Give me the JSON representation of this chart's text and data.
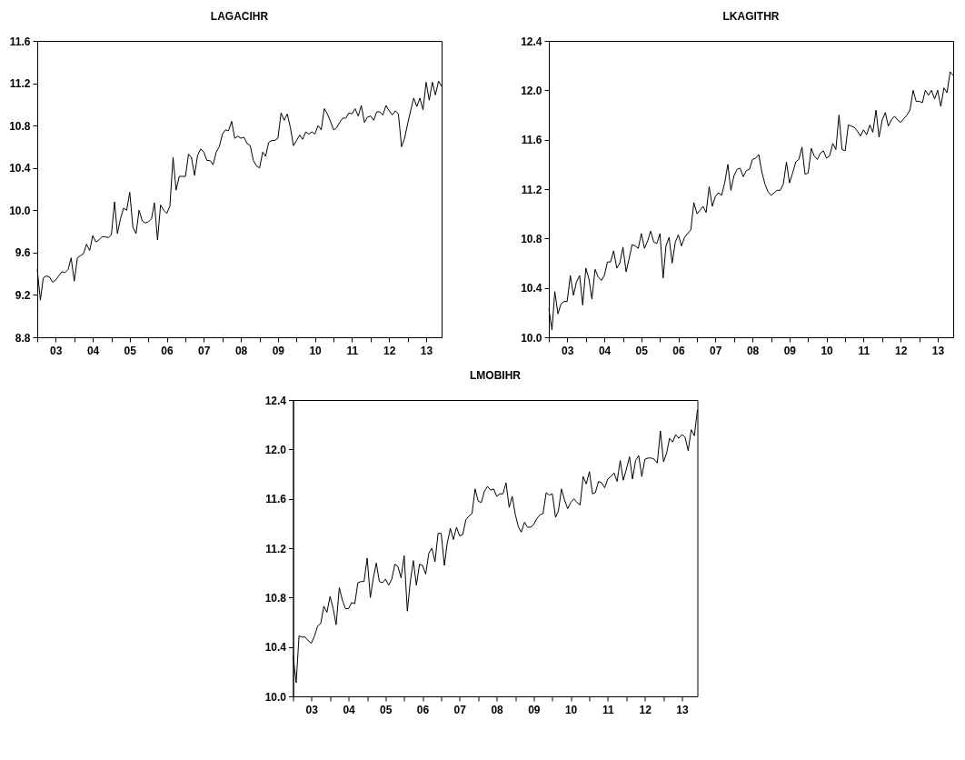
{
  "chart_data": [
    {
      "type": "line",
      "title": "LAGACIHR",
      "color": "#000000",
      "grid": false,
      "legend": false,
      "marker": "none",
      "line_style": "solid",
      "x": [
        "2003-01",
        "2003-02",
        "2003-03",
        "2003-04",
        "2003-05",
        "2003-06",
        "2003-07",
        "2003-08",
        "2003-09",
        "2003-10",
        "2003-11",
        "2003-12",
        "2004-01",
        "2004-02",
        "2004-03",
        "2004-04",
        "2004-05",
        "2004-06",
        "2004-07",
        "2004-08",
        "2004-09",
        "2004-10",
        "2004-11",
        "2004-12",
        "2005-01",
        "2005-02",
        "2005-03",
        "2005-04",
        "2005-05",
        "2005-06",
        "2005-07",
        "2005-08",
        "2005-09",
        "2005-10",
        "2005-11",
        "2005-12",
        "2006-01",
        "2006-02",
        "2006-03",
        "2006-04",
        "2006-05",
        "2006-06",
        "2006-07",
        "2006-08",
        "2006-09",
        "2006-10",
        "2006-11",
        "2006-12",
        "2007-01",
        "2007-02",
        "2007-03",
        "2007-04",
        "2007-05",
        "2007-06",
        "2007-07",
        "2007-08",
        "2007-09",
        "2007-10",
        "2007-11",
        "2007-12",
        "2008-01",
        "2008-02",
        "2008-03",
        "2008-04",
        "2008-05",
        "2008-06",
        "2008-07",
        "2008-08",
        "2008-09",
        "2008-10",
        "2008-11",
        "2008-12",
        "2009-01",
        "2009-02",
        "2009-03",
        "2009-04",
        "2009-05",
        "2009-06",
        "2009-07",
        "2009-08",
        "2009-09",
        "2009-10",
        "2009-11",
        "2009-12",
        "2010-01",
        "2010-02",
        "2010-03",
        "2010-04",
        "2010-05",
        "2010-06",
        "2010-07",
        "2010-08",
        "2010-09",
        "2010-10",
        "2010-11",
        "2010-12",
        "2011-01",
        "2011-02",
        "2011-03",
        "2011-04",
        "2011-05",
        "2011-06",
        "2011-07",
        "2011-08",
        "2011-09",
        "2011-10",
        "2011-11",
        "2011-12",
        "2012-01",
        "2012-02",
        "2012-03",
        "2012-04",
        "2012-05",
        "2012-06",
        "2012-07",
        "2012-08",
        "2012-09",
        "2012-10",
        "2012-11",
        "2012-12",
        "2013-01",
        "2013-02",
        "2013-03",
        "2013-04",
        "2013-05",
        "2013-06",
        "2013-07",
        "2013-08",
        "2013-09",
        "2013-10",
        "2013-11",
        "2013-12"
      ],
      "values": [
        9.44,
        9.15,
        9.36,
        9.38,
        9.37,
        9.32,
        9.34,
        9.38,
        9.42,
        9.41,
        9.44,
        9.55,
        9.33,
        9.55,
        9.57,
        9.59,
        9.68,
        9.62,
        9.76,
        9.7,
        9.72,
        9.75,
        9.75,
        9.74,
        9.77,
        10.08,
        9.78,
        9.92,
        10.02,
        10.0,
        10.17,
        9.84,
        9.78,
        10.0,
        9.9,
        9.88,
        9.89,
        9.92,
        10.07,
        9.72,
        10.05,
        10.0,
        9.97,
        10.04,
        10.5,
        10.19,
        10.32,
        10.32,
        10.32,
        10.53,
        10.5,
        10.33,
        10.52,
        10.58,
        10.55,
        10.47,
        10.47,
        10.43,
        10.55,
        10.6,
        10.72,
        10.76,
        10.75,
        10.84,
        10.68,
        10.7,
        10.68,
        10.69,
        10.63,
        10.61,
        10.47,
        10.42,
        10.4,
        10.55,
        10.51,
        10.64,
        10.66,
        10.66,
        10.68,
        10.92,
        10.85,
        10.91,
        10.78,
        10.61,
        10.66,
        10.71,
        10.67,
        10.74,
        10.72,
        10.74,
        10.72,
        10.8,
        10.76,
        10.96,
        10.91,
        10.84,
        10.76,
        10.78,
        10.83,
        10.87,
        10.87,
        10.92,
        10.91,
        10.96,
        10.89,
        10.99,
        10.83,
        10.88,
        10.89,
        10.85,
        10.93,
        10.93,
        10.9,
        10.99,
        10.94,
        10.9,
        10.94,
        10.91,
        10.6,
        10.68,
        10.82,
        10.95,
        11.06,
        10.98,
        11.06,
        10.95,
        11.21,
        11.04,
        11.21,
        11.09,
        11.22,
        11.17
      ],
      "xlim": [
        "2003-01",
        "2013-12"
      ],
      "xticks": [
        {
          "value": "2003-01",
          "label": null
        },
        {
          "value": "2003-07",
          "label": "03"
        },
        {
          "value": "2004-01",
          "label": null
        },
        {
          "value": "2004-07",
          "label": "04"
        },
        {
          "value": "2005-01",
          "label": null
        },
        {
          "value": "2005-07",
          "label": "05"
        },
        {
          "value": "2006-01",
          "label": null
        },
        {
          "value": "2006-07",
          "label": "06"
        },
        {
          "value": "2007-01",
          "label": null
        },
        {
          "value": "2007-07",
          "label": "07"
        },
        {
          "value": "2008-01",
          "label": null
        },
        {
          "value": "2008-07",
          "label": "08"
        },
        {
          "value": "2009-01",
          "label": null
        },
        {
          "value": "2009-07",
          "label": "09"
        },
        {
          "value": "2010-01",
          "label": null
        },
        {
          "value": "2010-07",
          "label": "10"
        },
        {
          "value": "2011-01",
          "label": null
        },
        {
          "value": "2011-07",
          "label": "11"
        },
        {
          "value": "2012-01",
          "label": null
        },
        {
          "value": "2012-07",
          "label": "12"
        },
        {
          "value": "2013-01",
          "label": null
        },
        {
          "value": "2013-07",
          "label": "13"
        }
      ],
      "ylim": [
        8.8,
        11.6
      ],
      "yticks": [
        {
          "value": 8.8,
          "label": "8.8"
        },
        {
          "value": 9.2,
          "label": "9.2"
        },
        {
          "value": 9.6,
          "label": "9.6"
        },
        {
          "value": 10,
          "label": "10.0"
        },
        {
          "value": 10.4,
          "label": "10.4"
        },
        {
          "value": 10.8,
          "label": "10.8"
        },
        {
          "value": 11.2,
          "label": "11.2"
        },
        {
          "value": 11.6,
          "label": "11.6"
        }
      ]
    },
    {
      "type": "line",
      "title": "LKAGITHR",
      "color": "#000000",
      "grid": false,
      "legend": false,
      "marker": "none",
      "line_style": "solid",
      "x": [
        "2003-01",
        "2003-02",
        "2003-03",
        "2003-04",
        "2003-05",
        "2003-06",
        "2003-07",
        "2003-08",
        "2003-09",
        "2003-10",
        "2003-11",
        "2003-12",
        "2004-01",
        "2004-02",
        "2004-03",
        "2004-04",
        "2004-05",
        "2004-06",
        "2004-07",
        "2004-08",
        "2004-09",
        "2004-10",
        "2004-11",
        "2004-12",
        "2005-01",
        "2005-02",
        "2005-03",
        "2005-04",
        "2005-05",
        "2005-06",
        "2005-07",
        "2005-08",
        "2005-09",
        "2005-10",
        "2005-11",
        "2005-12",
        "2006-01",
        "2006-02",
        "2006-03",
        "2006-04",
        "2006-05",
        "2006-06",
        "2006-07",
        "2006-08",
        "2006-09",
        "2006-10",
        "2006-11",
        "2006-12",
        "2007-01",
        "2007-02",
        "2007-03",
        "2007-04",
        "2007-05",
        "2007-06",
        "2007-07",
        "2007-08",
        "2007-09",
        "2007-10",
        "2007-11",
        "2007-12",
        "2008-01",
        "2008-02",
        "2008-03",
        "2008-04",
        "2008-05",
        "2008-06",
        "2008-07",
        "2008-08",
        "2008-09",
        "2008-10",
        "2008-11",
        "2008-12",
        "2009-01",
        "2009-02",
        "2009-03",
        "2009-04",
        "2009-05",
        "2009-06",
        "2009-07",
        "2009-08",
        "2009-09",
        "2009-10",
        "2009-11",
        "2009-12",
        "2010-01",
        "2010-02",
        "2010-03",
        "2010-04",
        "2010-05",
        "2010-06",
        "2010-07",
        "2010-08",
        "2010-09",
        "2010-10",
        "2010-11",
        "2010-12",
        "2011-01",
        "2011-02",
        "2011-03",
        "2011-04",
        "2011-05",
        "2011-06",
        "2011-07",
        "2011-08",
        "2011-09",
        "2011-10",
        "2011-11",
        "2011-12",
        "2012-01",
        "2012-02",
        "2012-03",
        "2012-04",
        "2012-05",
        "2012-06",
        "2012-07",
        "2012-08",
        "2012-09",
        "2012-10",
        "2012-11",
        "2012-12",
        "2013-01",
        "2013-02",
        "2013-03",
        "2013-04",
        "2013-05",
        "2013-06",
        "2013-07",
        "2013-08",
        "2013-09",
        "2013-10",
        "2013-11",
        "2013-12"
      ],
      "values": [
        10.23,
        10.06,
        10.37,
        10.19,
        10.27,
        10.29,
        10.29,
        10.5,
        10.34,
        10.45,
        10.5,
        10.26,
        10.56,
        10.47,
        10.31,
        10.55,
        10.49,
        10.46,
        10.5,
        10.61,
        10.61,
        10.7,
        10.56,
        10.6,
        10.73,
        10.53,
        10.63,
        10.75,
        10.74,
        10.72,
        10.84,
        10.72,
        10.78,
        10.86,
        10.77,
        10.76,
        10.84,
        10.48,
        10.74,
        10.81,
        10.6,
        10.77,
        10.83,
        10.74,
        10.81,
        10.84,
        10.87,
        11.09,
        11.0,
        11.03,
        11.06,
        11.01,
        11.22,
        11.06,
        11.14,
        11.17,
        11.15,
        11.25,
        11.4,
        11.19,
        11.31,
        11.36,
        11.37,
        11.3,
        11.35,
        11.36,
        11.44,
        11.45,
        11.48,
        11.34,
        11.24,
        11.18,
        11.15,
        11.17,
        11.19,
        11.19,
        11.24,
        11.42,
        11.25,
        11.33,
        11.42,
        11.44,
        11.54,
        11.32,
        11.33,
        11.53,
        11.47,
        11.44,
        11.49,
        11.51,
        11.45,
        11.47,
        11.57,
        11.52,
        11.8,
        11.52,
        11.51,
        11.72,
        11.71,
        11.7,
        11.67,
        11.63,
        11.68,
        11.64,
        11.72,
        11.66,
        11.84,
        11.62,
        11.76,
        11.82,
        11.71,
        11.76,
        11.79,
        11.76,
        11.74,
        11.77,
        11.8,
        11.84,
        12.0,
        11.91,
        11.91,
        11.9,
        12.0,
        11.96,
        12.0,
        11.93,
        12.0,
        11.87,
        12.02,
        11.98,
        12.15,
        12.12
      ],
      "xlim": [
        "2003-01",
        "2013-12"
      ],
      "xticks": [
        {
          "value": "2003-01",
          "label": null
        },
        {
          "value": "2003-07",
          "label": "03"
        },
        {
          "value": "2004-01",
          "label": null
        },
        {
          "value": "2004-07",
          "label": "04"
        },
        {
          "value": "2005-01",
          "label": null
        },
        {
          "value": "2005-07",
          "label": "05"
        },
        {
          "value": "2006-01",
          "label": null
        },
        {
          "value": "2006-07",
          "label": "06"
        },
        {
          "value": "2007-01",
          "label": null
        },
        {
          "value": "2007-07",
          "label": "07"
        },
        {
          "value": "2008-01",
          "label": null
        },
        {
          "value": "2008-07",
          "label": "08"
        },
        {
          "value": "2009-01",
          "label": null
        },
        {
          "value": "2009-07",
          "label": "09"
        },
        {
          "value": "2010-01",
          "label": null
        },
        {
          "value": "2010-07",
          "label": "10"
        },
        {
          "value": "2011-01",
          "label": null
        },
        {
          "value": "2011-07",
          "label": "11"
        },
        {
          "value": "2012-01",
          "label": null
        },
        {
          "value": "2012-07",
          "label": "12"
        },
        {
          "value": "2013-01",
          "label": null
        },
        {
          "value": "2013-07",
          "label": "13"
        }
      ],
      "ylim": [
        10,
        12.4
      ],
      "yticks": [
        {
          "value": 10,
          "label": "10.0"
        },
        {
          "value": 10.4,
          "label": "10.4"
        },
        {
          "value": 10.8,
          "label": "10.8"
        },
        {
          "value": 11.2,
          "label": "11.2"
        },
        {
          "value": 11.6,
          "label": "11.6"
        },
        {
          "value": 12,
          "label": "12.0"
        },
        {
          "value": 12.4,
          "label": "12.4"
        }
      ]
    },
    {
      "type": "line",
      "title": "LMOBIHR",
      "color": "#000000",
      "grid": false,
      "legend": false,
      "marker": "none",
      "line_style": "solid",
      "x": [
        "2003-01",
        "2003-02",
        "2003-03",
        "2003-04",
        "2003-05",
        "2003-06",
        "2003-07",
        "2003-08",
        "2003-09",
        "2003-10",
        "2003-11",
        "2003-12",
        "2004-01",
        "2004-02",
        "2004-03",
        "2004-04",
        "2004-05",
        "2004-06",
        "2004-07",
        "2004-08",
        "2004-09",
        "2004-10",
        "2004-11",
        "2004-12",
        "2005-01",
        "2005-02",
        "2005-03",
        "2005-04",
        "2005-05",
        "2005-06",
        "2005-07",
        "2005-08",
        "2005-09",
        "2005-10",
        "2005-11",
        "2005-12",
        "2006-01",
        "2006-02",
        "2006-03",
        "2006-04",
        "2006-05",
        "2006-06",
        "2006-07",
        "2006-08",
        "2006-09",
        "2006-10",
        "2006-11",
        "2006-12",
        "2007-01",
        "2007-02",
        "2007-03",
        "2007-04",
        "2007-05",
        "2007-06",
        "2007-07",
        "2007-08",
        "2007-09",
        "2007-10",
        "2007-11",
        "2007-12",
        "2008-01",
        "2008-02",
        "2008-03",
        "2008-04",
        "2008-05",
        "2008-06",
        "2008-07",
        "2008-08",
        "2008-09",
        "2008-10",
        "2008-11",
        "2008-12",
        "2009-01",
        "2009-02",
        "2009-03",
        "2009-04",
        "2009-05",
        "2009-06",
        "2009-07",
        "2009-08",
        "2009-09",
        "2009-10",
        "2009-11",
        "2009-12",
        "2010-01",
        "2010-02",
        "2010-03",
        "2010-04",
        "2010-05",
        "2010-06",
        "2010-07",
        "2010-08",
        "2010-09",
        "2010-10",
        "2010-11",
        "2010-12",
        "2011-01",
        "2011-02",
        "2011-03",
        "2011-04",
        "2011-05",
        "2011-06",
        "2011-07",
        "2011-08",
        "2011-09",
        "2011-10",
        "2011-11",
        "2011-12",
        "2012-01",
        "2012-02",
        "2012-03",
        "2012-04",
        "2012-05",
        "2012-06",
        "2012-07",
        "2012-08",
        "2012-09",
        "2012-10",
        "2012-11",
        "2012-12",
        "2013-01",
        "2013-02",
        "2013-03",
        "2013-04",
        "2013-05",
        "2013-06",
        "2013-07",
        "2013-08",
        "2013-09",
        "2013-10",
        "2013-11",
        "2013-12"
      ],
      "values": [
        10.33,
        10.11,
        10.49,
        10.48,
        10.48,
        10.45,
        10.43,
        10.49,
        10.57,
        10.59,
        10.73,
        10.68,
        10.81,
        10.71,
        10.58,
        10.88,
        10.78,
        10.71,
        10.71,
        10.76,
        10.75,
        10.92,
        10.93,
        10.93,
        11.12,
        10.8,
        10.95,
        11.08,
        10.93,
        10.92,
        10.95,
        10.9,
        10.95,
        11.07,
        11.05,
        10.96,
        11.14,
        10.69,
        10.92,
        11.1,
        10.9,
        11.07,
        11.06,
        10.99,
        11.16,
        11.2,
        11.09,
        11.32,
        11.32,
        11.06,
        11.24,
        11.36,
        11.27,
        11.37,
        11.3,
        11.31,
        11.43,
        11.46,
        11.48,
        11.68,
        11.58,
        11.57,
        11.66,
        11.7,
        11.67,
        11.68,
        11.62,
        11.64,
        11.64,
        11.73,
        11.53,
        11.62,
        11.47,
        11.37,
        11.33,
        11.41,
        11.37,
        11.37,
        11.39,
        11.44,
        11.47,
        11.48,
        11.65,
        11.63,
        11.64,
        11.45,
        11.5,
        11.68,
        11.59,
        11.52,
        11.57,
        11.6,
        11.57,
        11.55,
        11.78,
        11.72,
        11.82,
        11.64,
        11.65,
        11.74,
        11.73,
        11.69,
        11.76,
        11.78,
        11.81,
        11.74,
        11.91,
        11.75,
        11.84,
        11.94,
        11.76,
        11.91,
        11.95,
        11.78,
        11.92,
        11.93,
        11.93,
        11.92,
        11.89,
        12.15,
        11.9,
        11.97,
        12.09,
        12.06,
        12.12,
        12.09,
        12.12,
        12.1,
        11.99,
        12.16,
        12.11,
        12.32
      ],
      "xlim": [
        "2003-01",
        "2013-12"
      ],
      "xticks": [
        {
          "value": "2003-01",
          "label": null
        },
        {
          "value": "2003-07",
          "label": "03"
        },
        {
          "value": "2004-01",
          "label": null
        },
        {
          "value": "2004-07",
          "label": "04"
        },
        {
          "value": "2005-01",
          "label": null
        },
        {
          "value": "2005-07",
          "label": "05"
        },
        {
          "value": "2006-01",
          "label": null
        },
        {
          "value": "2006-07",
          "label": "06"
        },
        {
          "value": "2007-01",
          "label": null
        },
        {
          "value": "2007-07",
          "label": "07"
        },
        {
          "value": "2008-01",
          "label": null
        },
        {
          "value": "2008-07",
          "label": "08"
        },
        {
          "value": "2009-01",
          "label": null
        },
        {
          "value": "2009-07",
          "label": "09"
        },
        {
          "value": "2010-01",
          "label": null
        },
        {
          "value": "2010-07",
          "label": "10"
        },
        {
          "value": "2011-01",
          "label": null
        },
        {
          "value": "2011-07",
          "label": "11"
        },
        {
          "value": "2012-01",
          "label": null
        },
        {
          "value": "2012-07",
          "label": "12"
        },
        {
          "value": "2013-01",
          "label": null
        },
        {
          "value": "2013-07",
          "label": "13"
        }
      ],
      "ylim": [
        10,
        12.4
      ],
      "yticks": [
        {
          "value": 10,
          "label": "10.0"
        },
        {
          "value": 10.4,
          "label": "10.4"
        },
        {
          "value": 10.8,
          "label": "10.8"
        },
        {
          "value": 11.2,
          "label": "11.2"
        },
        {
          "value": 11.6,
          "label": "11.6"
        },
        {
          "value": 12,
          "label": "12.0"
        },
        {
          "value": 12.4,
          "label": "12.4"
        }
      ]
    }
  ]
}
